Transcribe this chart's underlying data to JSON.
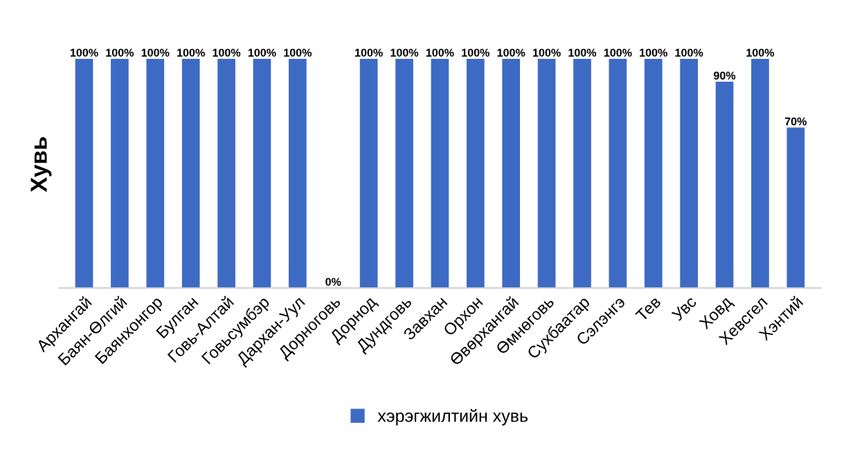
{
  "chart_data": {
    "type": "bar",
    "ylabel": "Хувь",
    "categories": [
      "Архангай",
      "Баян-Өлгий",
      "Баянхонгор",
      "Булган",
      "Говь-Алтай",
      "Говьсумбэр",
      "Дархан-Уул",
      "Дорноговь",
      "Дорнод",
      "Дундговь",
      "Завхан",
      "Орхон",
      "Өвөрхангай",
      "Өмнөговь",
      "Сухбаатар",
      "Сэлэнгэ",
      "Тев",
      "Увс",
      "Ховд",
      "Хевсгел",
      "Хэнтий"
    ],
    "series": [
      {
        "name": "хэрэгжилтийн хувь",
        "color": "#3d6bc4",
        "values": [
          100,
          100,
          100,
          100,
          100,
          100,
          100,
          0,
          100,
          100,
          100,
          100,
          100,
          100,
          100,
          100,
          100,
          100,
          90,
          100,
          70
        ],
        "value_labels": [
          "100%",
          "100%",
          "100%",
          "100%",
          "100%",
          "100%",
          "100%",
          "0%",
          "100%",
          "100%",
          "100%",
          "100%",
          "100%",
          "100%",
          "100%",
          "100%",
          "100%",
          "100%",
          "90%",
          "100%",
          "70%"
        ]
      }
    ],
    "legend": "bottom",
    "grid": false
  }
}
